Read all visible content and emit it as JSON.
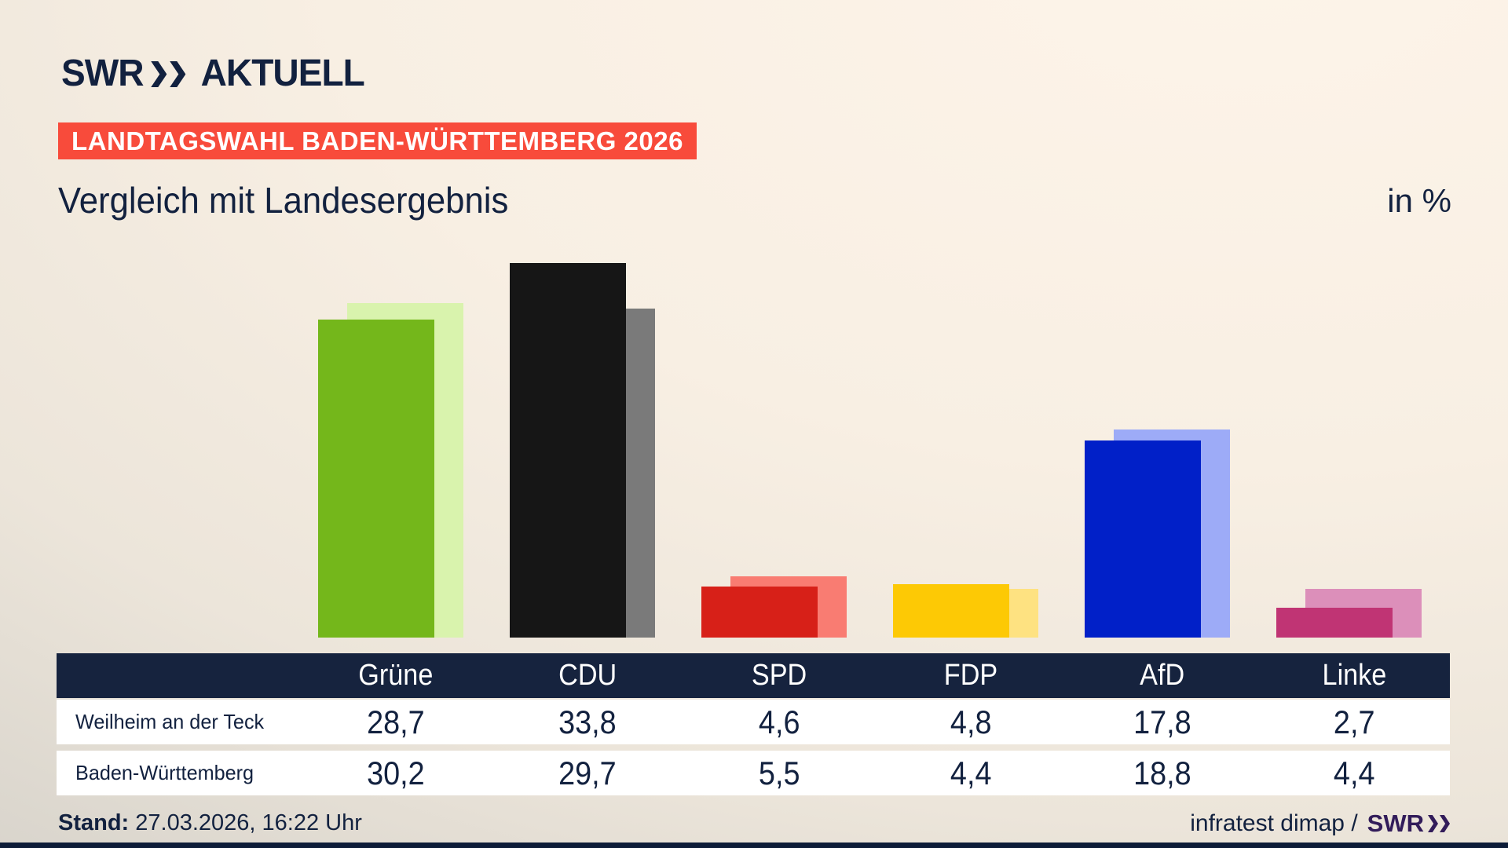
{
  "brand": {
    "swr": "SWR",
    "aktuell": "AKTUELL"
  },
  "badge": {
    "label": "LANDTAGSWAHL BADEN-WÜRTTEMBERG 2026"
  },
  "title": "Vergleich mit Landesergebnis",
  "unit_label": "in %",
  "icons": {
    "logo_chevrons": "double-chevron-right",
    "source_chevrons": "double-chevron-right"
  },
  "colors": {
    "navy": "#12213f",
    "accent_red": "#f84b3b",
    "table_header": "#16233e",
    "row_bg": "#ffffff",
    "bottom_bar": "#0d1c38",
    "swr_purple": "#321c5a"
  },
  "chart_data": {
    "type": "bar",
    "title": "Vergleich mit Landesergebnis",
    "unit": "in %",
    "categories": [
      "Grüne",
      "CDU",
      "SPD",
      "FDP",
      "AfD",
      "Linke"
    ],
    "series": [
      {
        "name": "Weilheim an der Teck",
        "role": "foreground",
        "values": [
          28.7,
          33.8,
          4.6,
          4.8,
          17.8,
          2.7
        ]
      },
      {
        "name": "Baden-Württemberg",
        "role": "background",
        "values": [
          30.2,
          29.7,
          5.5,
          4.4,
          18.8,
          4.4
        ]
      }
    ],
    "party_colors": [
      {
        "party": "Grüne",
        "foreground": "#74b71b",
        "background": "#d9f3ad"
      },
      {
        "party": "CDU",
        "foreground": "#161616",
        "background": "#7a7a7a"
      },
      {
        "party": "SPD",
        "foreground": "#d72018",
        "background": "#f97c72"
      },
      {
        "party": "FDP",
        "foreground": "#fdc905",
        "background": "#fee281"
      },
      {
        "party": "AfD",
        "foreground": "#0120c8",
        "background": "#9dabf7"
      },
      {
        "party": "Linke",
        "foreground": "#c03474",
        "background": "#dc8fba"
      }
    ],
    "ylim": [
      0,
      35
    ],
    "grid": false,
    "legend": "none",
    "value_decimal_separator": ","
  },
  "table": {
    "column_headers": [
      "Grüne",
      "CDU",
      "SPD",
      "FDP",
      "AfD",
      "Linke"
    ],
    "rows": [
      {
        "label": "Weilheim an der Teck",
        "values": [
          "28,7",
          "33,8",
          "4,6",
          "4,8",
          "17,8",
          "2,7"
        ]
      },
      {
        "label": "Baden-Württemberg",
        "values": [
          "30,2",
          "29,7",
          "5,5",
          "4,4",
          "18,8",
          "4,4"
        ]
      }
    ]
  },
  "footer": {
    "stand_label": "Stand:",
    "stand_value": " 27.03.2026, 16:22 Uhr",
    "source_text": "infratest dimap /",
    "source_brand": "SWR"
  }
}
